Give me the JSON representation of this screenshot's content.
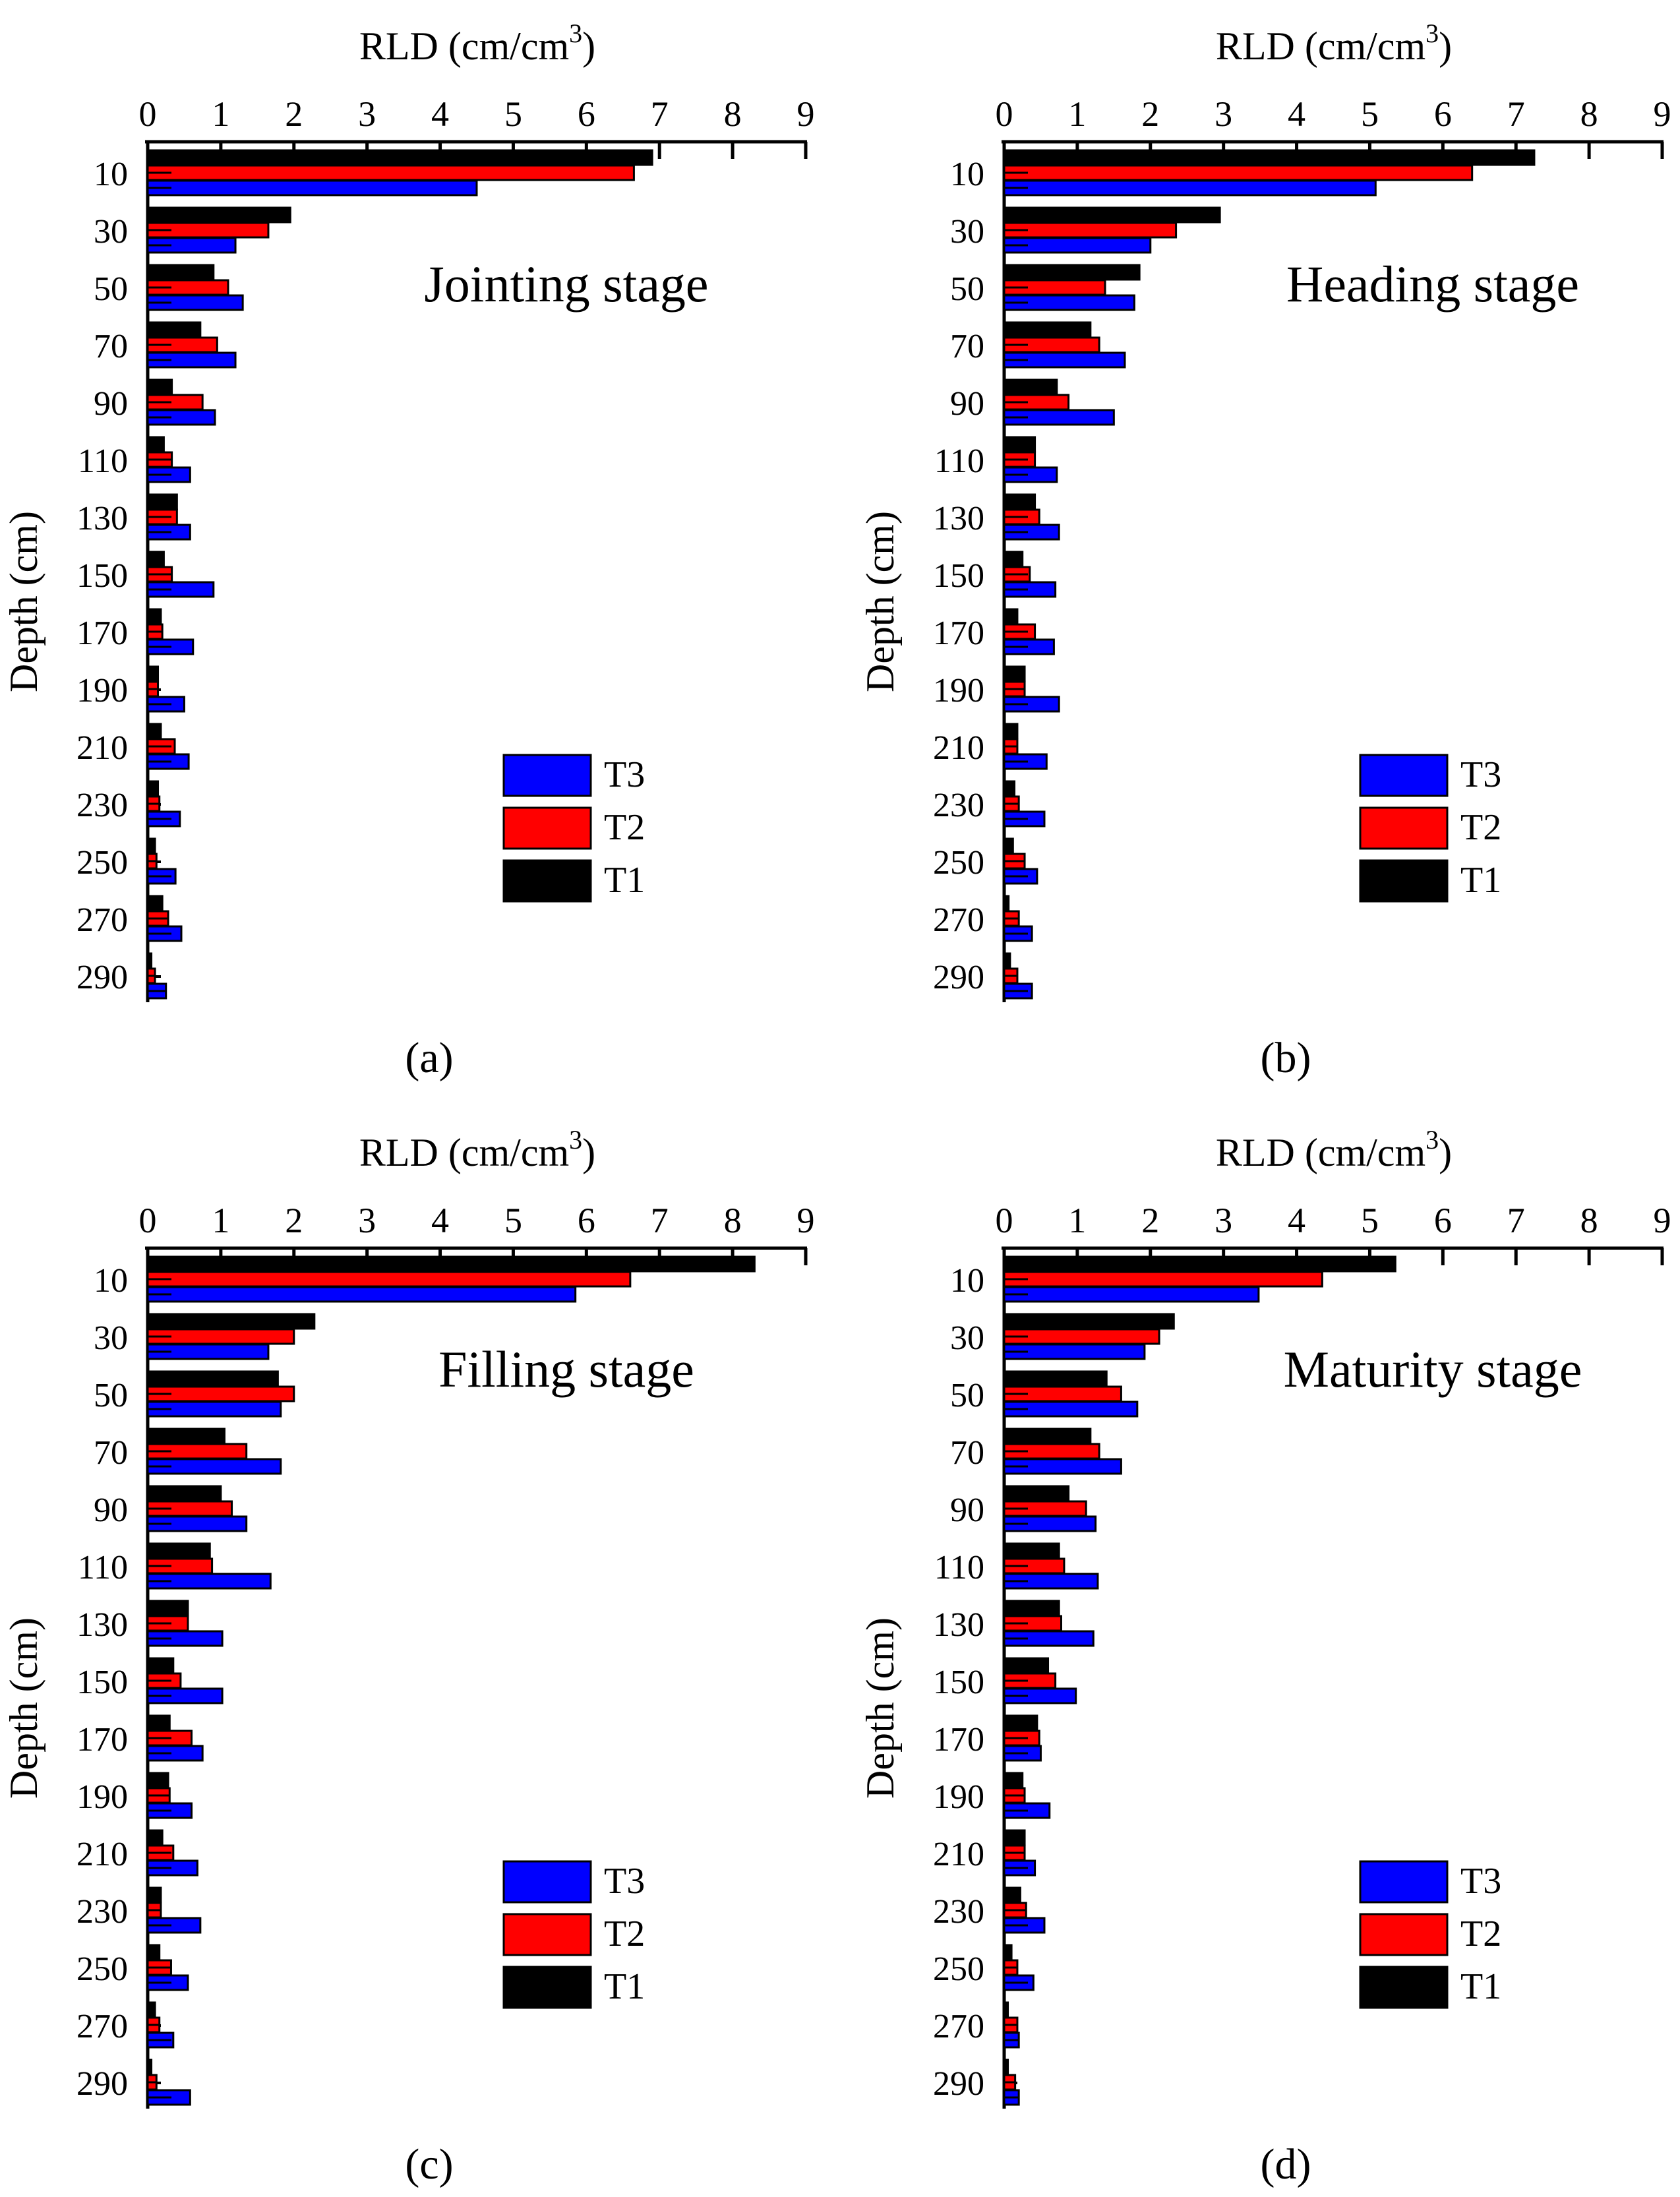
{
  "figure": {
    "legend_entries": [
      "T3",
      "T2",
      "T1"
    ],
    "series_colors": {
      "T3": "#0000ff",
      "T2": "#ff0000",
      "T1": "#000000"
    }
  },
  "chart_data": [
    {
      "type": "bar",
      "orientation": "horizontal",
      "panel_label": "(a)",
      "annotation": "Jointing stage",
      "xlabel": "RLD (cm/cm",
      "xlabel_superscript": "3",
      "xlabel_suffix": ")",
      "ylabel": "Depth (cm)",
      "xlim": [
        0,
        9
      ],
      "x_ticks": [
        "0",
        "1",
        "2",
        "3",
        "4",
        "5",
        "6",
        "7",
        "8",
        "9"
      ],
      "categories": [
        "10",
        "30",
        "50",
        "70",
        "90",
        "110",
        "130",
        "150",
        "170",
        "190",
        "210",
        "230",
        "250",
        "270",
        "290"
      ],
      "series": [
        {
          "name": "T1",
          "color": "#000000",
          "values": [
            6.9,
            1.95,
            0.9,
            0.72,
            0.33,
            0.22,
            0.4,
            0.22,
            0.18,
            0.14,
            0.18,
            0.14,
            0.1,
            0.2,
            0.05
          ]
        },
        {
          "name": "T2",
          "color": "#ff0000",
          "values": [
            6.65,
            1.65,
            1.1,
            0.95,
            0.75,
            0.33,
            0.4,
            0.33,
            0.2,
            0.14,
            0.37,
            0.16,
            0.12,
            0.28,
            0.1
          ]
        },
        {
          "name": "T3",
          "color": "#0000ff",
          "values": [
            4.5,
            1.2,
            1.3,
            1.2,
            0.92,
            0.58,
            0.58,
            0.9,
            0.62,
            0.5,
            0.56,
            0.44,
            0.38,
            0.46,
            0.25
          ]
        }
      ],
      "legend": "lower-right"
    },
    {
      "type": "bar",
      "orientation": "horizontal",
      "panel_label": "(b)",
      "annotation": "Heading stage",
      "xlabel": "RLD (cm/cm",
      "xlabel_superscript": "3",
      "xlabel_suffix": ")",
      "ylabel": "Depth (cm)",
      "xlim": [
        0,
        9
      ],
      "x_ticks": [
        "0",
        "1",
        "2",
        "3",
        "4",
        "5",
        "6",
        "7",
        "8",
        "9"
      ],
      "categories": [
        "10",
        "30",
        "50",
        "70",
        "90",
        "110",
        "130",
        "150",
        "170",
        "190",
        "210",
        "230",
        "250",
        "270",
        "290"
      ],
      "series": [
        {
          "name": "T1",
          "color": "#000000",
          "values": [
            7.25,
            2.95,
            1.85,
            1.18,
            0.72,
            0.42,
            0.42,
            0.25,
            0.18,
            0.28,
            0.18,
            0.14,
            0.12,
            0.06,
            0.08
          ]
        },
        {
          "name": "T2",
          "color": "#ff0000",
          "values": [
            6.4,
            2.35,
            1.38,
            1.3,
            0.88,
            0.42,
            0.48,
            0.35,
            0.42,
            0.28,
            0.18,
            0.2,
            0.28,
            0.2,
            0.18
          ]
        },
        {
          "name": "T3",
          "color": "#0000ff",
          "values": [
            5.08,
            2.0,
            1.78,
            1.65,
            1.5,
            0.72,
            0.75,
            0.7,
            0.68,
            0.75,
            0.58,
            0.55,
            0.45,
            0.38,
            0.38
          ]
        }
      ],
      "legend": "lower-right"
    },
    {
      "type": "bar",
      "orientation": "horizontal",
      "panel_label": "(c)",
      "annotation": "Filling stage",
      "xlabel": "RLD (cm/cm",
      "xlabel_superscript": "3",
      "xlabel_suffix": ")",
      "ylabel": "Depth (cm)",
      "xlim": [
        0,
        9
      ],
      "x_ticks": [
        "0",
        "1",
        "2",
        "3",
        "4",
        "5",
        "6",
        "7",
        "8",
        "9"
      ],
      "categories": [
        "10",
        "30",
        "50",
        "70",
        "90",
        "110",
        "130",
        "150",
        "170",
        "190",
        "210",
        "230",
        "250",
        "270",
        "290"
      ],
      "series": [
        {
          "name": "T1",
          "color": "#000000",
          "values": [
            8.3,
            2.28,
            1.78,
            1.05,
            1.0,
            0.85,
            0.55,
            0.35,
            0.3,
            0.28,
            0.2,
            0.18,
            0.16,
            0.1,
            0.05
          ]
        },
        {
          "name": "T2",
          "color": "#ff0000",
          "values": [
            6.6,
            2.0,
            2.0,
            1.35,
            1.15,
            0.88,
            0.55,
            0.45,
            0.6,
            0.3,
            0.35,
            0.18,
            0.32,
            0.16,
            0.12
          ]
        },
        {
          "name": "T3",
          "color": "#0000ff",
          "values": [
            5.85,
            1.65,
            1.82,
            1.82,
            1.35,
            1.68,
            1.02,
            1.02,
            0.75,
            0.6,
            0.68,
            0.72,
            0.55,
            0.35,
            0.58
          ]
        }
      ],
      "legend": "lower-right"
    },
    {
      "type": "bar",
      "orientation": "horizontal",
      "panel_label": "(d)",
      "annotation": "Maturity stage",
      "xlabel": "RLD (cm/cm",
      "xlabel_superscript": "3",
      "xlabel_suffix": ")",
      "ylabel": "Depth (cm)",
      "xlim": [
        0,
        9
      ],
      "x_ticks": [
        "0",
        "1",
        "2",
        "3",
        "4",
        "5",
        "6",
        "7",
        "8",
        "9"
      ],
      "categories": [
        "10",
        "30",
        "50",
        "70",
        "90",
        "110",
        "130",
        "150",
        "170",
        "190",
        "210",
        "230",
        "250",
        "270",
        "290"
      ],
      "series": [
        {
          "name": "T1",
          "color": "#000000",
          "values": [
            5.35,
            2.32,
            1.4,
            1.18,
            0.88,
            0.75,
            0.75,
            0.6,
            0.45,
            0.25,
            0.28,
            0.22,
            0.1,
            0.05,
            0.05
          ]
        },
        {
          "name": "T2",
          "color": "#ff0000",
          "values": [
            4.35,
            2.12,
            1.6,
            1.3,
            1.12,
            0.82,
            0.78,
            0.7,
            0.48,
            0.28,
            0.28,
            0.3,
            0.18,
            0.18,
            0.15
          ]
        },
        {
          "name": "T3",
          "color": "#0000ff",
          "values": [
            3.48,
            1.92,
            1.82,
            1.6,
            1.25,
            1.28,
            1.22,
            0.98,
            0.5,
            0.62,
            0.42,
            0.55,
            0.4,
            0.2,
            0.2
          ]
        }
      ],
      "legend": "lower-right"
    }
  ]
}
